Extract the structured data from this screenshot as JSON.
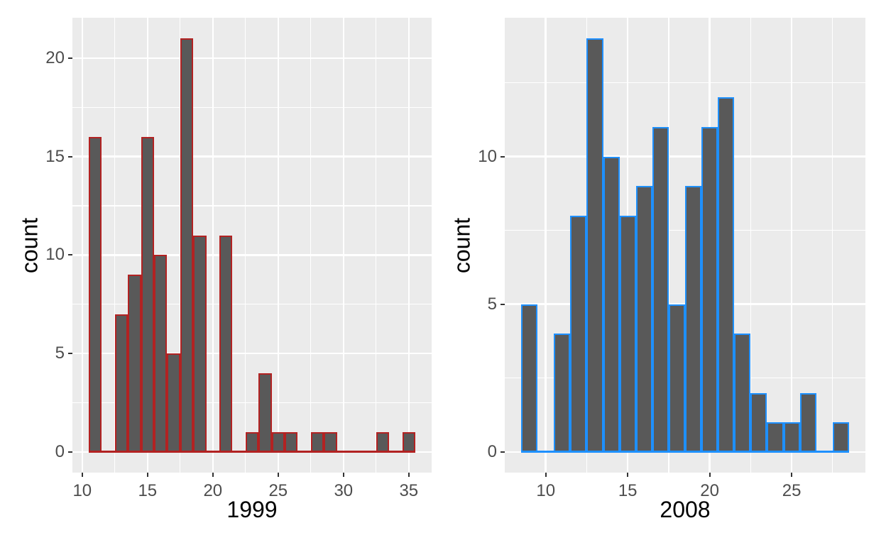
{
  "figure": {
    "background": "#FFFFFF",
    "panel_background": "#EBEBEB",
    "grid_color": "#FFFFFF",
    "bar_fill": "#595959",
    "axis_text_color": "#4D4D4D",
    "tick_mark_color": "#333333",
    "axis_title_color": "#000000"
  },
  "chart_data": [
    {
      "type": "bar",
      "subtype": "histogram",
      "title": "",
      "xlabel": "1999",
      "ylabel": "count",
      "legend": "none",
      "grid": true,
      "bar_outline_color": "#B22222",
      "bin_width": 1,
      "bin_centers": [
        11,
        12,
        13,
        14,
        15,
        16,
        17,
        18,
        19,
        20,
        21,
        22,
        23,
        24,
        25,
        26,
        27,
        28,
        29,
        30,
        31,
        32,
        33,
        34,
        35
      ],
      "values": [
        16,
        0,
        7,
        9,
        16,
        10,
        5,
        21,
        11,
        0,
        11,
        0,
        1,
        4,
        1,
        1,
        0,
        1,
        1,
        0,
        0,
        0,
        1,
        0,
        1
      ],
      "x_ticks": [
        10,
        15,
        20,
        25,
        30,
        35
      ],
      "y_ticks": [
        0,
        5,
        10,
        15,
        20
      ],
      "xlim": [
        9.25,
        36.75
      ],
      "ylim": [
        -1.05,
        22.05
      ]
    },
    {
      "type": "bar",
      "subtype": "histogram",
      "title": "",
      "xlabel": "2008",
      "ylabel": "count",
      "legend": "none",
      "grid": true,
      "bar_outline_color": "#1E90FF",
      "bin_width": 1,
      "bin_centers": [
        9,
        10,
        11,
        12,
        13,
        14,
        15,
        16,
        17,
        18,
        19,
        20,
        21,
        22,
        23,
        24,
        25,
        26,
        27,
        28
      ],
      "values": [
        5,
        0,
        4,
        8,
        14,
        10,
        8,
        9,
        11,
        5,
        9,
        11,
        12,
        4,
        2,
        1,
        1,
        2,
        0,
        1
      ],
      "x_ticks": [
        10,
        15,
        20,
        25
      ],
      "y_ticks": [
        0,
        5,
        10
      ],
      "xlim": [
        7.5,
        29.5
      ],
      "ylim": [
        -0.7,
        14.7
      ]
    }
  ]
}
